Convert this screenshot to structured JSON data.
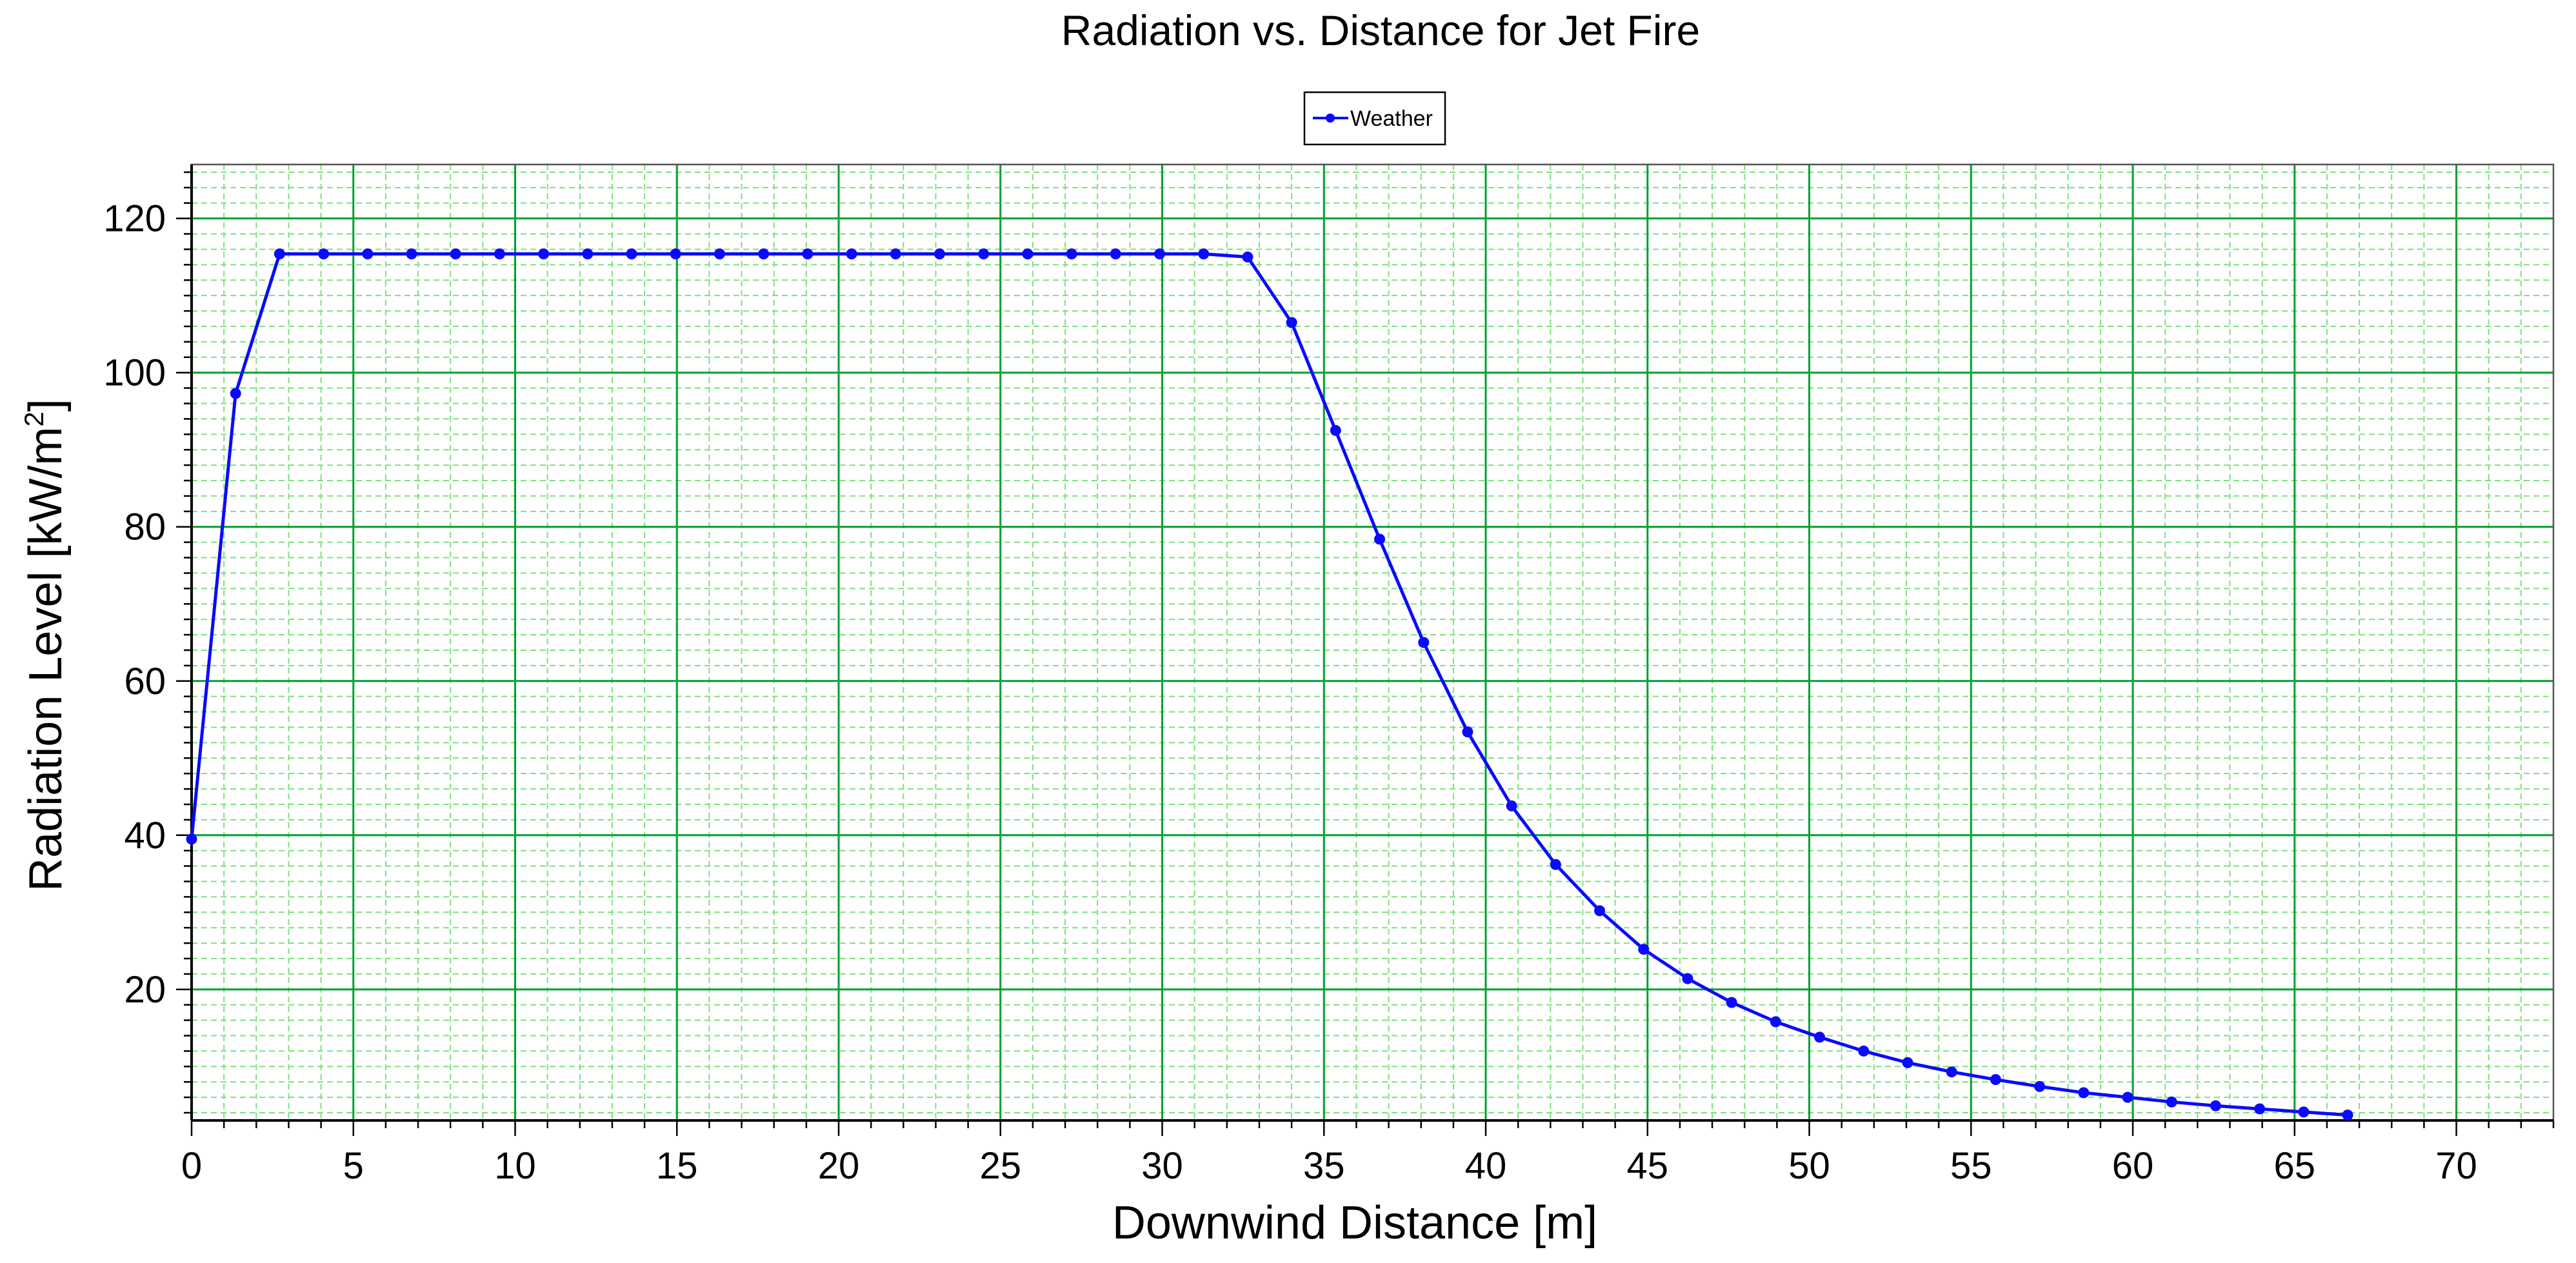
{
  "chart_data": {
    "type": "line",
    "title": "Radiation vs. Distance for Jet Fire",
    "xlabel": "Downwind Distance [m]",
    "ylabel": "Radiation Level [kW/m",
    "ylabel_sup": "2",
    "ylabel_suffix": "]",
    "xlim": [
      0,
      73
    ],
    "ylim": [
      3,
      127
    ],
    "x_ticks": [
      0,
      5,
      10,
      15,
      20,
      25,
      30,
      35,
      40,
      45,
      50,
      55,
      60,
      65,
      70
    ],
    "y_ticks": [
      20,
      40,
      60,
      80,
      100,
      120
    ],
    "x_tick_labels": [
      "0",
      "5",
      "10",
      "15",
      "20",
      "25",
      "30",
      "35",
      "40",
      "45",
      "50",
      "55",
      "60",
      "65",
      "70"
    ],
    "y_tick_labels": [
      "20",
      "40",
      "60",
      "80",
      "100",
      "120"
    ],
    "x_minor_step": 1,
    "y_minor_step": 2,
    "grid": true,
    "legend_position": "top-center",
    "colors": {
      "series": "#0a0aff",
      "major_grid": "#00a030",
      "minor_grid": "#7ee07e"
    },
    "series": [
      {
        "name": "Weather",
        "x": [
          0,
          1.36,
          2.72,
          4.08,
          5.44,
          6.8,
          8.16,
          9.52,
          10.88,
          12.24,
          13.6,
          14.96,
          16.32,
          17.68,
          19.04,
          20.4,
          21.76,
          23.12,
          24.48,
          25.84,
          27.2,
          28.56,
          29.92,
          31.28,
          32.64,
          34.0,
          35.36,
          36.72,
          38.08,
          39.44,
          40.8,
          42.16,
          43.52,
          44.88,
          46.24,
          47.6,
          48.96,
          50.32,
          51.68,
          53.04,
          54.4,
          55.76,
          57.12,
          58.48,
          59.84,
          61.2,
          62.56,
          63.92,
          65.28,
          66.64
        ],
        "values": [
          39.5,
          97.3,
          115.4,
          115.4,
          115.4,
          115.4,
          115.4,
          115.4,
          115.4,
          115.4,
          115.4,
          115.4,
          115.4,
          115.4,
          115.4,
          115.4,
          115.4,
          115.4,
          115.4,
          115.4,
          115.4,
          115.4,
          115.4,
          115.4,
          115.0,
          106.5,
          92.5,
          78.4,
          65.0,
          53.4,
          43.8,
          36.2,
          30.2,
          25.2,
          21.4,
          18.3,
          15.8,
          13.8,
          12.0,
          10.5,
          9.3,
          8.3,
          7.4,
          6.6,
          6.0,
          5.4,
          4.9,
          4.5,
          4.1,
          3.7
        ]
      }
    ]
  }
}
